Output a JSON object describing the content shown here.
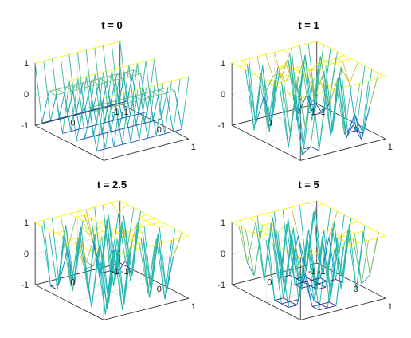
{
  "chart_data": [
    {
      "type": "surface",
      "title": "t = 0",
      "xticks": [
        "-1",
        "0",
        "1"
      ],
      "yticks": [
        "-1",
        "0",
        "1"
      ],
      "zticks": [
        "-1",
        "0",
        "1"
      ],
      "xlim": [
        -1,
        1
      ],
      "ylim": [
        -1,
        1
      ],
      "zlim": [
        -1,
        1
      ],
      "t": 0,
      "surface": "z = cos(4πx) (undamped standing wave), meshgrid over [-1,1]×[-1,1], 11×11 grid",
      "colormap": "parula",
      "grid": true
    },
    {
      "type": "surface",
      "title": "t = 1",
      "xticks": [
        "-1",
        "0",
        "1"
      ],
      "yticks": [
        "-1",
        "0",
        "1"
      ],
      "zticks": [
        "-1",
        "0",
        "1"
      ],
      "xlim": [
        -1,
        1
      ],
      "ylim": [
        -1,
        1
      ],
      "zlim": [
        -1,
        1
      ],
      "t": 1,
      "surface": "mostly saturated at z = 1 with deep valleys toward -1",
      "colormap": "parula",
      "grid": true
    },
    {
      "type": "surface",
      "title": "t = 2.5",
      "xticks": [
        "-1",
        "0",
        "1"
      ],
      "yticks": [
        "-1",
        "0",
        "1"
      ],
      "zticks": [
        "-1",
        "0",
        "1"
      ],
      "xlim": [
        -1,
        1
      ],
      "ylim": [
        -1,
        1
      ],
      "zlim": [
        -1,
        1
      ],
      "t": 2.5,
      "surface": "mostly saturated at z = 1 with narrow spikes down to -1",
      "colormap": "parula",
      "grid": true
    },
    {
      "type": "surface",
      "title": "t = 5",
      "xticks": [
        "-1",
        "0",
        "1"
      ],
      "yticks": [
        "-1",
        "0",
        "1"
      ],
      "zticks": [
        "-1",
        "0",
        "1"
      ],
      "xlim": [
        -1,
        1
      ],
      "ylim": [
        -1,
        1
      ],
      "zlim": [
        -1,
        1
      ],
      "t": 5,
      "surface": "mostly saturated at z = 1 with narrow spikes down to -1",
      "colormap": "parula",
      "grid": true
    }
  ]
}
